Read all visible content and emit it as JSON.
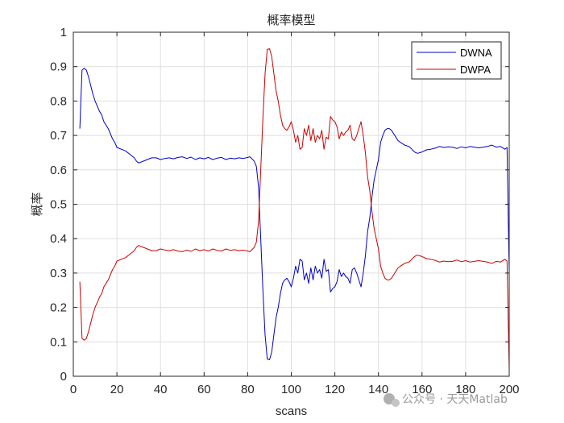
{
  "chart_data": {
    "type": "line",
    "title": "概率模型",
    "xlabel": "scans",
    "ylabel": "概率",
    "xlim": [
      0,
      200
    ],
    "ylim": [
      0,
      1
    ],
    "xticks": [
      0,
      20,
      40,
      60,
      80,
      100,
      120,
      140,
      160,
      180,
      200
    ],
    "yticks": [
      0,
      0.1,
      0.2,
      0.3,
      0.4,
      0.5,
      0.6,
      0.7,
      0.8,
      0.9,
      1
    ],
    "grid": true,
    "legend_position": "top-right",
    "series": [
      {
        "name": "DWNA",
        "color": "#0000cc",
        "points": [
          [
            3,
            0.72
          ],
          [
            4,
            0.89
          ],
          [
            5,
            0.895
          ],
          [
            6,
            0.89
          ],
          [
            7,
            0.87
          ],
          [
            8,
            0.845
          ],
          [
            9,
            0.82
          ],
          [
            10,
            0.8
          ],
          [
            11,
            0.785
          ],
          [
            12,
            0.77
          ],
          [
            13,
            0.76
          ],
          [
            14,
            0.74
          ],
          [
            15,
            0.73
          ],
          [
            16,
            0.72
          ],
          [
            17,
            0.705
          ],
          [
            18,
            0.69
          ],
          [
            19,
            0.68
          ],
          [
            20,
            0.665
          ],
          [
            22,
            0.66
          ],
          [
            24,
            0.655
          ],
          [
            26,
            0.645
          ],
          [
            28,
            0.635
          ],
          [
            29,
            0.625
          ],
          [
            30,
            0.62
          ],
          [
            32,
            0.625
          ],
          [
            34,
            0.63
          ],
          [
            36,
            0.635
          ],
          [
            38,
            0.635
          ],
          [
            40,
            0.63
          ],
          [
            42,
            0.633
          ],
          [
            44,
            0.635
          ],
          [
            46,
            0.632
          ],
          [
            48,
            0.636
          ],
          [
            50,
            0.638
          ],
          [
            52,
            0.633
          ],
          [
            54,
            0.637
          ],
          [
            56,
            0.63
          ],
          [
            58,
            0.635
          ],
          [
            60,
            0.632
          ],
          [
            62,
            0.636
          ],
          [
            64,
            0.63
          ],
          [
            66,
            0.634
          ],
          [
            68,
            0.636
          ],
          [
            70,
            0.63
          ],
          [
            72,
            0.634
          ],
          [
            74,
            0.632
          ],
          [
            76,
            0.635
          ],
          [
            78,
            0.633
          ],
          [
            80,
            0.636
          ],
          [
            81,
            0.638
          ],
          [
            82,
            0.632
          ],
          [
            83,
            0.625
          ],
          [
            84,
            0.61
          ],
          [
            85,
            0.55
          ],
          [
            86,
            0.4
          ],
          [
            87,
            0.25
          ],
          [
            88,
            0.12
          ],
          [
            89,
            0.05
          ],
          [
            90,
            0.048
          ],
          [
            91,
            0.07
          ],
          [
            92,
            0.12
          ],
          [
            93,
            0.17
          ],
          [
            94,
            0.2
          ],
          [
            95,
            0.24
          ],
          [
            96,
            0.27
          ],
          [
            97,
            0.28
          ],
          [
            98,
            0.285
          ],
          [
            99,
            0.275
          ],
          [
            100,
            0.26
          ],
          [
            101,
            0.285
          ],
          [
            102,
            0.32
          ],
          [
            103,
            0.3
          ],
          [
            104,
            0.34
          ],
          [
            105,
            0.335
          ],
          [
            106,
            0.28
          ],
          [
            107,
            0.3
          ],
          [
            108,
            0.27
          ],
          [
            109,
            0.315
          ],
          [
            110,
            0.28
          ],
          [
            111,
            0.32
          ],
          [
            112,
            0.3
          ],
          [
            113,
            0.31
          ],
          [
            114,
            0.285
          ],
          [
            115,
            0.34
          ],
          [
            116,
            0.305
          ],
          [
            117,
            0.31
          ],
          [
            118,
            0.245
          ],
          [
            119,
            0.255
          ],
          [
            120,
            0.26
          ],
          [
            121,
            0.275
          ],
          [
            122,
            0.31
          ],
          [
            123,
            0.29
          ],
          [
            124,
            0.3
          ],
          [
            125,
            0.29
          ],
          [
            126,
            0.285
          ],
          [
            127,
            0.27
          ],
          [
            128,
            0.31
          ],
          [
            129,
            0.315
          ],
          [
            130,
            0.3
          ],
          [
            131,
            0.28
          ],
          [
            132,
            0.26
          ],
          [
            133,
            0.3
          ],
          [
            134,
            0.35
          ],
          [
            135,
            0.42
          ],
          [
            136,
            0.46
          ],
          [
            137,
            0.52
          ],
          [
            138,
            0.57
          ],
          [
            139,
            0.6
          ],
          [
            140,
            0.63
          ],
          [
            141,
            0.68
          ],
          [
            142,
            0.7
          ],
          [
            143,
            0.715
          ],
          [
            144,
            0.72
          ],
          [
            145,
            0.72
          ],
          [
            146,
            0.715
          ],
          [
            147,
            0.705
          ],
          [
            148,
            0.695
          ],
          [
            149,
            0.685
          ],
          [
            150,
            0.68
          ],
          [
            152,
            0.672
          ],
          [
            154,
            0.668
          ],
          [
            155,
            0.662
          ],
          [
            156,
            0.655
          ],
          [
            157,
            0.65
          ],
          [
            158,
            0.648
          ],
          [
            160,
            0.652
          ],
          [
            162,
            0.658
          ],
          [
            164,
            0.66
          ],
          [
            166,
            0.663
          ],
          [
            168,
            0.668
          ],
          [
            170,
            0.665
          ],
          [
            172,
            0.667
          ],
          [
            174,
            0.666
          ],
          [
            176,
            0.662
          ],
          [
            178,
            0.667
          ],
          [
            180,
            0.664
          ],
          [
            182,
            0.668
          ],
          [
            184,
            0.666
          ],
          [
            186,
            0.664
          ],
          [
            188,
            0.666
          ],
          [
            190,
            0.668
          ],
          [
            192,
            0.672
          ],
          [
            194,
            0.666
          ],
          [
            196,
            0.668
          ],
          [
            198,
            0.66
          ],
          [
            199,
            0.665
          ],
          [
            200,
            0.3
          ]
        ]
      },
      {
        "name": "DWPA",
        "color": "#cc0000",
        "points": [
          [
            3,
            0.275
          ],
          [
            4,
            0.11
          ],
          [
            5,
            0.105
          ],
          [
            6,
            0.11
          ],
          [
            7,
            0.13
          ],
          [
            8,
            0.155
          ],
          [
            9,
            0.18
          ],
          [
            10,
            0.2
          ],
          [
            11,
            0.215
          ],
          [
            12,
            0.23
          ],
          [
            13,
            0.24
          ],
          [
            14,
            0.26
          ],
          [
            15,
            0.27
          ],
          [
            16,
            0.28
          ],
          [
            17,
            0.295
          ],
          [
            18,
            0.31
          ],
          [
            19,
            0.32
          ],
          [
            20,
            0.335
          ],
          [
            22,
            0.34
          ],
          [
            24,
            0.345
          ],
          [
            26,
            0.355
          ],
          [
            28,
            0.365
          ],
          [
            29,
            0.375
          ],
          [
            30,
            0.38
          ],
          [
            32,
            0.375
          ],
          [
            34,
            0.37
          ],
          [
            36,
            0.365
          ],
          [
            38,
            0.365
          ],
          [
            40,
            0.37
          ],
          [
            42,
            0.367
          ],
          [
            44,
            0.365
          ],
          [
            46,
            0.368
          ],
          [
            48,
            0.364
          ],
          [
            50,
            0.362
          ],
          [
            52,
            0.367
          ],
          [
            54,
            0.363
          ],
          [
            56,
            0.37
          ],
          [
            58,
            0.365
          ],
          [
            60,
            0.368
          ],
          [
            62,
            0.364
          ],
          [
            64,
            0.37
          ],
          [
            66,
            0.366
          ],
          [
            68,
            0.364
          ],
          [
            70,
            0.37
          ],
          [
            72,
            0.366
          ],
          [
            74,
            0.368
          ],
          [
            76,
            0.365
          ],
          [
            78,
            0.367
          ],
          [
            80,
            0.364
          ],
          [
            81,
            0.362
          ],
          [
            82,
            0.368
          ],
          [
            83,
            0.375
          ],
          [
            84,
            0.39
          ],
          [
            85,
            0.45
          ],
          [
            86,
            0.6
          ],
          [
            87,
            0.75
          ],
          [
            88,
            0.88
          ],
          [
            89,
            0.95
          ],
          [
            90,
            0.952
          ],
          [
            91,
            0.93
          ],
          [
            92,
            0.88
          ],
          [
            93,
            0.83
          ],
          [
            94,
            0.8
          ],
          [
            95,
            0.76
          ],
          [
            96,
            0.73
          ],
          [
            97,
            0.72
          ],
          [
            98,
            0.715
          ],
          [
            99,
            0.725
          ],
          [
            100,
            0.74
          ],
          [
            101,
            0.715
          ],
          [
            102,
            0.68
          ],
          [
            103,
            0.7
          ],
          [
            104,
            0.66
          ],
          [
            105,
            0.665
          ],
          [
            106,
            0.72
          ],
          [
            107,
            0.7
          ],
          [
            108,
            0.73
          ],
          [
            109,
            0.685
          ],
          [
            110,
            0.72
          ],
          [
            111,
            0.68
          ],
          [
            112,
            0.7
          ],
          [
            113,
            0.69
          ],
          [
            114,
            0.715
          ],
          [
            115,
            0.66
          ],
          [
            116,
            0.695
          ],
          [
            117,
            0.69
          ],
          [
            118,
            0.755
          ],
          [
            119,
            0.745
          ],
          [
            120,
            0.74
          ],
          [
            121,
            0.725
          ],
          [
            122,
            0.69
          ],
          [
            123,
            0.71
          ],
          [
            124,
            0.7
          ],
          [
            125,
            0.71
          ],
          [
            126,
            0.715
          ],
          [
            127,
            0.73
          ],
          [
            128,
            0.69
          ],
          [
            129,
            0.685
          ],
          [
            130,
            0.7
          ],
          [
            131,
            0.72
          ],
          [
            132,
            0.74
          ],
          [
            133,
            0.7
          ],
          [
            134,
            0.65
          ],
          [
            135,
            0.58
          ],
          [
            136,
            0.54
          ],
          [
            137,
            0.48
          ],
          [
            138,
            0.43
          ],
          [
            139,
            0.4
          ],
          [
            140,
            0.37
          ],
          [
            141,
            0.32
          ],
          [
            142,
            0.3
          ],
          [
            143,
            0.285
          ],
          [
            144,
            0.28
          ],
          [
            145,
            0.28
          ],
          [
            146,
            0.285
          ],
          [
            147,
            0.295
          ],
          [
            148,
            0.305
          ],
          [
            149,
            0.315
          ],
          [
            150,
            0.32
          ],
          [
            152,
            0.328
          ],
          [
            154,
            0.332
          ],
          [
            155,
            0.338
          ],
          [
            156,
            0.345
          ],
          [
            157,
            0.35
          ],
          [
            158,
            0.352
          ],
          [
            160,
            0.348
          ],
          [
            162,
            0.342
          ],
          [
            164,
            0.34
          ],
          [
            166,
            0.337
          ],
          [
            168,
            0.332
          ],
          [
            170,
            0.335
          ],
          [
            172,
            0.333
          ],
          [
            174,
            0.334
          ],
          [
            176,
            0.338
          ],
          [
            178,
            0.333
          ],
          [
            180,
            0.336
          ],
          [
            182,
            0.332
          ],
          [
            184,
            0.334
          ],
          [
            186,
            0.336
          ],
          [
            188,
            0.334
          ],
          [
            190,
            0.332
          ],
          [
            192,
            0.328
          ],
          [
            194,
            0.334
          ],
          [
            196,
            0.332
          ],
          [
            198,
            0.34
          ],
          [
            199,
            0.335
          ],
          [
            200,
            0.02
          ]
        ]
      }
    ]
  },
  "watermark": {
    "text": "公众号 · 天天Matlab",
    "icon": "wechat-icon"
  }
}
